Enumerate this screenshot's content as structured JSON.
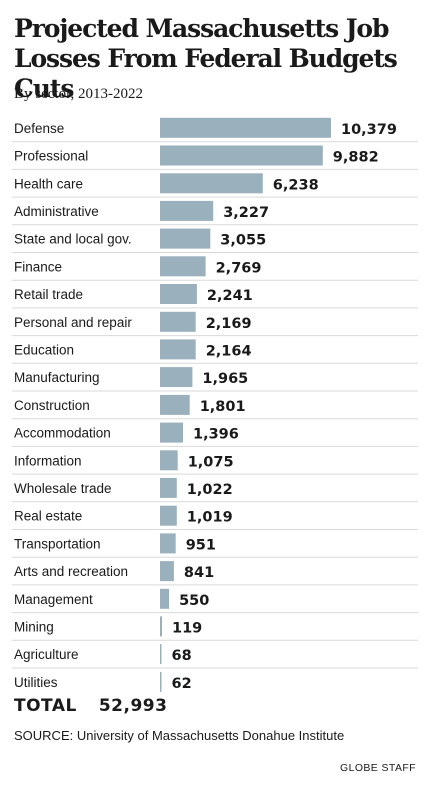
{
  "title": "Projected Massachusetts Job Losses From Federal Budgets Cuts",
  "subtitle": "By sector, 2013-2022",
  "chart_data": {
    "type": "bar",
    "orientation": "horizontal",
    "categories": [
      "Defense",
      "Professional",
      "Health care",
      "Administrative",
      "State and local gov.",
      "Finance",
      "Retail trade",
      "Personal and repair",
      "Education",
      "Manufacturing",
      "Construction",
      "Accommodation",
      "Information",
      "Wholesale trade",
      "Real estate",
      "Transportation",
      "Arts and recreation",
      "Management",
      "Mining",
      "Agriculture",
      "Utilities"
    ],
    "values": [
      10379,
      9882,
      6238,
      3227,
      3055,
      2769,
      2241,
      2169,
      2164,
      1965,
      1801,
      1396,
      1075,
      1022,
      1019,
      951,
      841,
      550,
      119,
      68,
      62
    ],
    "value_labels": [
      "10,379",
      "9,882",
      "6,238",
      "3,227",
      "3,055",
      "2,769",
      "2,241",
      "2,169",
      "2,164",
      "1,965",
      "1,801",
      "1,396",
      "1,075",
      "1,022",
      "1,019",
      "951",
      "841",
      "550",
      "119",
      "68",
      "62"
    ],
    "bar_color": "#9bb0bd",
    "grid": false,
    "legend": "none"
  },
  "total": {
    "label": "TOTAL",
    "value": "52,993"
  },
  "source": "SOURCE: University of Massachusetts Donahue Institute",
  "credit": "GLOBE STAFF"
}
